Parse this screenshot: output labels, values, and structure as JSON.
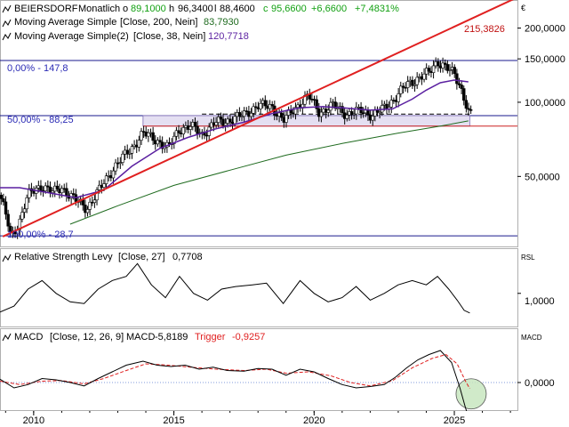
{
  "chart_data": [
    {
      "type": "candlestick",
      "panel": "price",
      "header": {
        "name": "BEIERSDORF",
        "period": "Monatlich",
        "open": "89,1000",
        "high": "96,3400",
        "low": "88,4600",
        "close": "95,6600",
        "change_abs": "+6,6600",
        "change_pct": "+7,4831%"
      },
      "ma200": {
        "label": "Moving Average Simple",
        "params": "[Close, 200, Nein]",
        "value": "83,7930",
        "color": "#1f6b1f"
      },
      "ma38": {
        "label": "Moving Average Simple(2)",
        "params": "[Close, 38, Nein]",
        "value": "120,7718",
        "color": "#5a1fa0"
      },
      "fib": [
        {
          "label": "0,00% - 147,8",
          "value": 147.8
        },
        {
          "label": "50,00% - 88,25",
          "value": 88.25
        },
        {
          "label": "100,00% - 28,7",
          "value": 28.7
        }
      ],
      "trend_label": "215,3826",
      "y_axis_label": "€",
      "y_ticks": [
        {
          "label": "200,0000",
          "value": 200
        },
        {
          "label": "150,0000",
          "value": 150
        },
        {
          "label": "100,0000",
          "value": 100
        },
        {
          "label": "50,0000",
          "value": 50
        }
      ],
      "x_ticks": [
        "2010",
        "2015",
        "2020",
        "2025"
      ],
      "price_path": [
        [
          2008.8,
          42
        ],
        [
          2009.2,
          28
        ],
        [
          2009.5,
          33
        ],
        [
          2009.8,
          42
        ],
        [
          2010.3,
          46
        ],
        [
          2010.7,
          43
        ],
        [
          2011.0,
          45
        ],
        [
          2011.5,
          40
        ],
        [
          2011.9,
          37
        ],
        [
          2012.4,
          45
        ],
        [
          2012.9,
          55
        ],
        [
          2013.5,
          65
        ],
        [
          2013.9,
          75
        ],
        [
          2014.4,
          70
        ],
        [
          2014.8,
          65
        ],
        [
          2015.2,
          78
        ],
        [
          2015.6,
          80
        ],
        [
          2016.0,
          74
        ],
        [
          2016.5,
          83
        ],
        [
          2016.9,
          84
        ],
        [
          2017.5,
          89
        ],
        [
          2018.0,
          97
        ],
        [
          2018.5,
          96
        ],
        [
          2018.9,
          84
        ],
        [
          2019.3,
          94
        ],
        [
          2019.8,
          106
        ],
        [
          2020.2,
          91
        ],
        [
          2020.7,
          97
        ],
        [
          2021.2,
          89
        ],
        [
          2021.7,
          93
        ],
        [
          2022.1,
          88
        ],
        [
          2022.5,
          95
        ],
        [
          2022.9,
          104
        ],
        [
          2023.3,
          118
        ],
        [
          2023.7,
          125
        ],
        [
          2024.1,
          132
        ],
        [
          2024.4,
          147
        ],
        [
          2024.7,
          138
        ],
        [
          2025.0,
          130
        ],
        [
          2025.2,
          117
        ],
        [
          2025.4,
          100
        ],
        [
          2025.5,
          91
        ],
        [
          2025.55,
          89
        ]
      ],
      "ma38_path": [
        [
          2008.8,
          45
        ],
        [
          2009.5,
          45
        ],
        [
          2010.5,
          43
        ],
        [
          2011.5,
          41
        ],
        [
          2012.5,
          44
        ],
        [
          2013.5,
          55
        ],
        [
          2014.5,
          65
        ],
        [
          2015.5,
          72
        ],
        [
          2016.5,
          78
        ],
        [
          2017.5,
          83
        ],
        [
          2018.5,
          90
        ],
        [
          2019.5,
          95
        ],
        [
          2020.3,
          96
        ],
        [
          2021.0,
          95
        ],
        [
          2022.0,
          93
        ],
        [
          2022.8,
          94
        ],
        [
          2023.5,
          103
        ],
        [
          2024.0,
          112
        ],
        [
          2024.5,
          120
        ],
        [
          2025.0,
          123
        ],
        [
          2025.5,
          121
        ]
      ],
      "ma200_path": [
        [
          2011.3,
          32
        ],
        [
          2013.0,
          38
        ],
        [
          2015.0,
          46
        ],
        [
          2017.0,
          53
        ],
        [
          2019.0,
          61
        ],
        [
          2021.0,
          68
        ],
        [
          2023.0,
          75
        ],
        [
          2024.5,
          80
        ],
        [
          2025.5,
          84
        ]
      ],
      "trendline": [
        [
          2008.9,
          28.5
        ],
        [
          2025.5,
          215.3826
        ]
      ]
    },
    {
      "type": "line",
      "panel": "rsl",
      "label": "Relative Strength Levy",
      "params": "[Close, 27]",
      "value": "0,7708",
      "axis_label": "RSL",
      "tick": "1,0000",
      "path": [
        [
          2008.8,
          0.78
        ],
        [
          2009.3,
          0.85
        ],
        [
          2009.8,
          1.05
        ],
        [
          2010.3,
          1.15
        ],
        [
          2010.8,
          1.0
        ],
        [
          2011.3,
          0.9
        ],
        [
          2011.8,
          0.88
        ],
        [
          2012.3,
          1.05
        ],
        [
          2012.8,
          1.15
        ],
        [
          2013.3,
          1.2
        ],
        [
          2013.7,
          1.35
        ],
        [
          2014.2,
          1.1
        ],
        [
          2014.7,
          0.95
        ],
        [
          2015.2,
          1.2
        ],
        [
          2015.7,
          1.0
        ],
        [
          2016.2,
          0.92
        ],
        [
          2016.7,
          1.05
        ],
        [
          2017.2,
          1.08
        ],
        [
          2017.8,
          1.1
        ],
        [
          2018.3,
          1.12
        ],
        [
          2018.9,
          0.88
        ],
        [
          2019.5,
          1.15
        ],
        [
          2020.0,
          1.0
        ],
        [
          2020.5,
          0.9
        ],
        [
          2021.0,
          0.95
        ],
        [
          2021.5,
          1.08
        ],
        [
          2022.0,
          0.92
        ],
        [
          2022.5,
          1.0
        ],
        [
          2023.0,
          1.1
        ],
        [
          2023.5,
          1.15
        ],
        [
          2024.0,
          1.1
        ],
        [
          2024.4,
          1.2
        ],
        [
          2024.8,
          1.05
        ],
        [
          2025.1,
          0.92
        ],
        [
          2025.35,
          0.8
        ],
        [
          2025.55,
          0.77
        ]
      ]
    },
    {
      "type": "line",
      "panel": "macd",
      "label": "MACD",
      "params": "[Close, 12, 26, 9]",
      "value_label": "MACD",
      "value": "-5,8189",
      "trigger_label": "Trigger",
      "trigger_value": "-0,9257",
      "axis_label": "MACD",
      "tick": "0,0000",
      "macd_path": [
        [
          2008.8,
          0.5
        ],
        [
          2009.3,
          -0.8
        ],
        [
          2009.8,
          -0.3
        ],
        [
          2010.3,
          0.6
        ],
        [
          2010.8,
          0.4
        ],
        [
          2011.3,
          0.0
        ],
        [
          2011.8,
          -0.5
        ],
        [
          2012.3,
          0.6
        ],
        [
          2012.8,
          1.6
        ],
        [
          2013.3,
          2.6
        ],
        [
          2013.9,
          3.2
        ],
        [
          2014.4,
          2.6
        ],
        [
          2014.9,
          2.4
        ],
        [
          2015.4,
          2.6
        ],
        [
          2015.9,
          2.0
        ],
        [
          2016.4,
          2.3
        ],
        [
          2016.9,
          1.8
        ],
        [
          2017.5,
          1.7
        ],
        [
          2018.0,
          2.1
        ],
        [
          2018.5,
          2.0
        ],
        [
          2019.0,
          1.1
        ],
        [
          2019.5,
          2.0
        ],
        [
          2020.0,
          1.6
        ],
        [
          2020.5,
          0.6
        ],
        [
          2021.0,
          -0.3
        ],
        [
          2021.5,
          -0.8
        ],
        [
          2022.0,
          -0.6
        ],
        [
          2022.5,
          -0.3
        ],
        [
          2022.9,
          0.8
        ],
        [
          2023.3,
          2.2
        ],
        [
          2023.7,
          3.4
        ],
        [
          2024.1,
          4.2
        ],
        [
          2024.5,
          4.8
        ],
        [
          2024.9,
          3.0
        ],
        [
          2025.2,
          -0.8
        ],
        [
          2025.4,
          -3.8
        ],
        [
          2025.55,
          -5.8
        ]
      ],
      "trigger_path": [
        [
          2008.8,
          0.2
        ],
        [
          2009.5,
          -0.3
        ],
        [
          2010.3,
          0.2
        ],
        [
          2011.0,
          0.3
        ],
        [
          2011.8,
          -0.2
        ],
        [
          2012.5,
          0.6
        ],
        [
          2013.3,
          1.8
        ],
        [
          2014.0,
          2.8
        ],
        [
          2014.8,
          2.6
        ],
        [
          2015.6,
          2.3
        ],
        [
          2016.5,
          2.0
        ],
        [
          2017.5,
          1.8
        ],
        [
          2018.3,
          2.0
        ],
        [
          2019.0,
          1.4
        ],
        [
          2019.8,
          1.6
        ],
        [
          2020.6,
          1.0
        ],
        [
          2021.3,
          0.0
        ],
        [
          2022.0,
          -0.5
        ],
        [
          2022.8,
          0.3
        ],
        [
          2023.5,
          2.2
        ],
        [
          2024.2,
          3.6
        ],
        [
          2024.7,
          4.2
        ],
        [
          2025.1,
          2.8
        ],
        [
          2025.4,
          0.2
        ],
        [
          2025.55,
          -0.9
        ]
      ]
    }
  ],
  "colors": {
    "up_candle": "#ffffff",
    "down_candle": "#000000",
    "trend": "#e02020",
    "fib_line": "#1a1a8c",
    "fib_label": "#2b2bb5",
    "box_fill": "#e4dff2",
    "support": "#cc2020",
    "macd_line": "#000000",
    "trigger_line": "#e02020",
    "highlight_circle": "#c8e6c0",
    "header_green": "#12a012"
  }
}
